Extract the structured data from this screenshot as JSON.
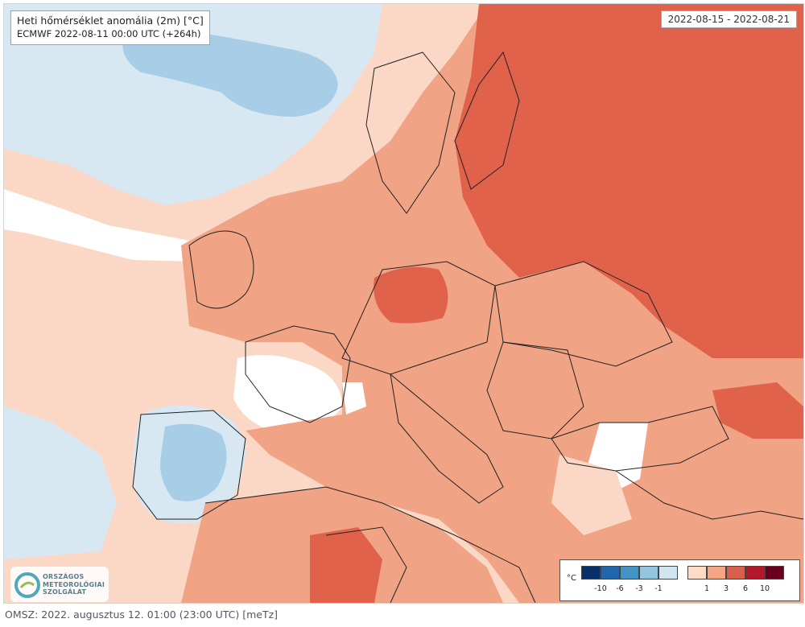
{
  "map": {
    "title": "Heti hőmérséklet anomália (2m) [°C]",
    "subtitle": "ECMWF 2022-08-11 00:00 UTC (+264h)",
    "period": "2022-08-15 - 2022-08-21",
    "colors": {
      "land_white": "#ffffff",
      "cold_light": "#d8e8f3",
      "cold_mid": "#a8cde6",
      "cold_strong": "#7fb3d9",
      "warm_light": "#fbd8c6",
      "warm_mid": "#f0a385",
      "warm_strong": "#e0624b",
      "warm_very": "#c83a2e",
      "border": "#222222"
    }
  },
  "legend": {
    "unit": "°C",
    "cold_ticks": [
      "-10",
      "-6",
      "-3",
      "-1"
    ],
    "warm_ticks": [
      "1",
      "3",
      "6",
      "10"
    ],
    "cold_colors": [
      "#08306b",
      "#2166ac",
      "#4393c3",
      "#92c5de",
      "#d1e5f0"
    ],
    "warm_colors": [
      "#fddbc7",
      "#f4a582",
      "#d6604d",
      "#b2182b",
      "#67001f"
    ]
  },
  "logo": {
    "line1": "ORSZÁGOS",
    "line2": "METEOROLÓGIAI",
    "line3": "SZOLGÁLAT"
  },
  "footer": {
    "text": "OMSZ: 2022. augusztus 12. 01:00 (23:00 UTC)  [meTz]"
  }
}
